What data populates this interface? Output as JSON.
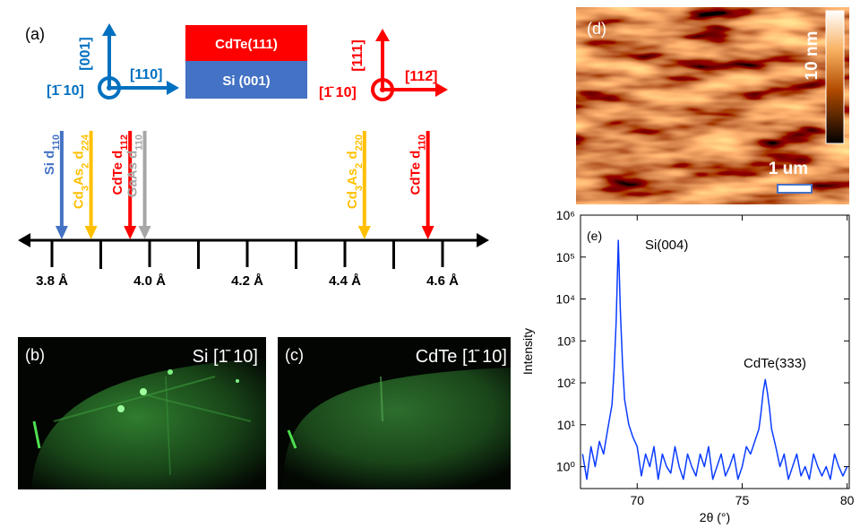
{
  "panel_a": {
    "label": "(a)",
    "si_axes": {
      "up": "[001]",
      "right": "[110]",
      "left": "[1̄ 10]",
      "color": "#0070c0"
    },
    "stack": {
      "top": "CdTe(111)",
      "bottom": "Si (001)",
      "top_color": "#ff0000",
      "bottom_color": "#4472c4"
    },
    "cdte_axes": {
      "up": "[111]",
      "right": "[112̄]",
      "left": "[1̄ 10]",
      "color": "#ff0000"
    },
    "number_line": {
      "ticks": [
        {
          "value": 3.8,
          "label": "3.8 Å"
        },
        {
          "value": 4.0,
          "label": "4.0 Å"
        },
        {
          "value": 4.2,
          "label": "4.2 Å"
        },
        {
          "value": 4.4,
          "label": "4.4 Å"
        },
        {
          "value": 4.6,
          "label": "4.6 Å"
        }
      ],
      "minor_ticks": [
        3.9,
        4.1,
        4.3,
        4.5
      ],
      "markers": [
        {
          "value": 3.82,
          "color": "#4472c4",
          "parts": [
            {
              "t": "Si d"
            },
            {
              "s": "110"
            }
          ]
        },
        {
          "value": 3.88,
          "color": "#ffc000",
          "parts": [
            {
              "t": "Cd"
            },
            {
              "s": "3"
            },
            {
              "t": "As"
            },
            {
              "s": "2"
            },
            {
              "t": " d"
            },
            {
              "s": "224"
            }
          ]
        },
        {
          "value": 3.96,
          "color": "#ff0000",
          "parts": [
            {
              "t": "CdTe d"
            },
            {
              "s": "112"
            }
          ]
        },
        {
          "value": 3.99,
          "color": "#a6a6a6",
          "parts": [
            {
              "t": "GaAs d"
            },
            {
              "s": "110"
            }
          ]
        },
        {
          "value": 4.44,
          "color": "#ffc000",
          "parts": [
            {
              "t": "Cd"
            },
            {
              "s": "3"
            },
            {
              "t": "As"
            },
            {
              "s": "2"
            },
            {
              "t": " d"
            },
            {
              "s": "220"
            }
          ]
        },
        {
          "value": 4.57,
          "color": "#ff0000",
          "parts": [
            {
              "t": "CdTe d"
            },
            {
              "s": "110"
            }
          ]
        }
      ]
    }
  },
  "panel_b": {
    "label": "(b)",
    "caption": "Si [1̄ 10]"
  },
  "panel_c": {
    "label": "(c)",
    "caption": "CdTe [1̄ 10]"
  },
  "panel_d": {
    "label": "(d)",
    "colorbar_label": "10 nm",
    "scale_label": "1 um"
  },
  "chart_data": {
    "type": "line",
    "panel_label": "(e)",
    "x_label": "2θ (°)",
    "y_label": "Intensity",
    "annotations": [
      "Si(004)",
      "CdTe(333)"
    ],
    "log_y": true,
    "color": "#0a3cff",
    "xlim": [
      67.3,
      80.1
    ],
    "xticks": [
      70,
      75,
      80
    ],
    "ylim": [
      0.3,
      1000000
    ],
    "yticks": [
      {
        "value": 1,
        "label": "10⁰"
      },
      {
        "value": 10,
        "label": "10¹"
      },
      {
        "value": 100,
        "label": "10²"
      },
      {
        "value": 1000,
        "label": "10³"
      },
      {
        "value": 10000,
        "label": "10⁴"
      },
      {
        "value": 100000,
        "label": "10⁵"
      },
      {
        "value": 1000000,
        "label": "10⁶"
      }
    ],
    "x": [
      67.4,
      67.6,
      67.8,
      68.0,
      68.2,
      68.4,
      68.6,
      68.8,
      68.9,
      69.0,
      69.1,
      69.2,
      69.3,
      69.4,
      69.6,
      69.8,
      70.0,
      70.2,
      70.4,
      70.6,
      70.8,
      71.0,
      71.2,
      71.4,
      71.6,
      71.8,
      72.0,
      72.2,
      72.4,
      72.6,
      72.8,
      73.0,
      73.2,
      73.4,
      73.6,
      73.8,
      74.0,
      74.2,
      74.4,
      74.6,
      74.8,
      75.0,
      75.2,
      75.4,
      75.6,
      75.8,
      75.9,
      76.0,
      76.1,
      76.2,
      76.3,
      76.4,
      76.6,
      76.8,
      77.0,
      77.2,
      77.4,
      77.6,
      77.8,
      78.0,
      78.2,
      78.4,
      78.6,
      78.8,
      79.0,
      79.2,
      79.4,
      79.6,
      79.8,
      80.0
    ],
    "values": [
      2,
      0.5,
      3,
      1,
      4,
      2,
      8,
      30,
      200,
      3000,
      250000,
      5000,
      300,
      40,
      10,
      5,
      3,
      0.6,
      2,
      1,
      3,
      0.5,
      2,
      1,
      0.7,
      3,
      1,
      0.5,
      2,
      1,
      0.6,
      2,
      1,
      3,
      0.5,
      1,
      2,
      0.6,
      1,
      2,
      0.5,
      1,
      3,
      2,
      4,
      8,
      20,
      60,
      120,
      60,
      25,
      8,
      3,
      1,
      2,
      0.5,
      1,
      2,
      0.6,
      1,
      0.5,
      2,
      1,
      0.6,
      1,
      0.5,
      2,
      1,
      0.6,
      1
    ]
  }
}
